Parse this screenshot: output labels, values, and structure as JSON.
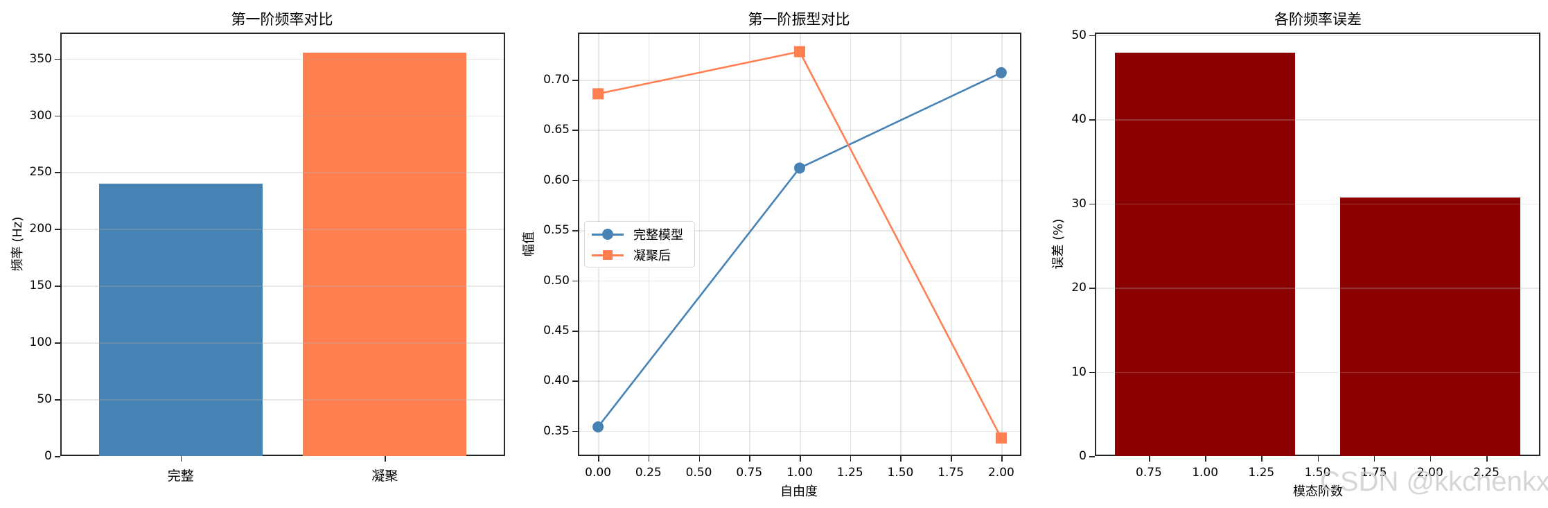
{
  "chart_data": [
    {
      "type": "bar",
      "title": "第一阶频率对比",
      "xlabel": "",
      "ylabel": "频率 (Hz)",
      "categories": [
        "完整",
        "凝聚"
      ],
      "values": [
        240,
        355
      ],
      "colors": [
        "#4682b4",
        "#ff7f50"
      ],
      "ylim": [
        0,
        373
      ],
      "yticks": [
        0,
        50,
        100,
        150,
        200,
        250,
        300,
        350
      ],
      "grid": "y"
    },
    {
      "type": "line",
      "title": "第一阶振型对比",
      "xlabel": "自由度",
      "ylabel": "幅值",
      "x": [
        0,
        1,
        2
      ],
      "series": [
        {
          "name": "完整模型",
          "values": [
            0.354,
            0.612,
            0.707
          ],
          "color": "#4682b4",
          "marker": "circle"
        },
        {
          "name": "凝聚后",
          "values": [
            0.686,
            0.728,
            0.343
          ],
          "color": "#ff7f50",
          "marker": "square"
        }
      ],
      "xlim": [
        -0.1,
        2.1
      ],
      "ylim": [
        0.325,
        0.747
      ],
      "xticks": [
        "0.00",
        "0.25",
        "0.50",
        "0.75",
        "1.00",
        "1.25",
        "1.50",
        "1.75",
        "2.00"
      ],
      "yticks": [
        "0.35",
        "0.40",
        "0.45",
        "0.50",
        "0.55",
        "0.60",
        "0.65",
        "0.70"
      ],
      "legend_position": "center left",
      "grid": "both"
    },
    {
      "type": "bar",
      "title": "各阶频率误差",
      "xlabel": "模态阶数",
      "ylabel": "误差 (%)",
      "x": [
        1,
        2
      ],
      "values": [
        47.9,
        30.7
      ],
      "color": "#8b0000",
      "xlim": [
        0.51,
        2.49
      ],
      "ylim": [
        0,
        50.3
      ],
      "xticks": [
        "0.75",
        "1.00",
        "1.25",
        "1.50",
        "1.75",
        "2.00",
        "2.25"
      ],
      "yticks": [
        "0",
        "10",
        "20",
        "30",
        "40",
        "50"
      ],
      "grid": "y"
    }
  ],
  "panels": {
    "freq": {
      "title": "第一阶频率对比",
      "ylabel": "频率 (Hz)",
      "yticks": [
        "0",
        "50",
        "100",
        "150",
        "200",
        "250",
        "300",
        "350"
      ],
      "categories": [
        "完整",
        "凝聚"
      ]
    },
    "mode": {
      "title": "第一阶振型对比",
      "xlabel": "自由度",
      "ylabel": "幅值",
      "xticks": [
        "0.00",
        "0.25",
        "0.50",
        "0.75",
        "1.00",
        "1.25",
        "1.50",
        "1.75",
        "2.00"
      ],
      "yticks": [
        "0.35",
        "0.40",
        "0.45",
        "0.50",
        "0.55",
        "0.60",
        "0.65",
        "0.70"
      ],
      "legend": [
        "完整模型",
        "凝聚后"
      ]
    },
    "error": {
      "title": "各阶频率误差",
      "xlabel": "模态阶数",
      "ylabel": "误差 (%)",
      "xticks": [
        "0.75",
        "1.00",
        "1.25",
        "1.50",
        "1.75",
        "2.00",
        "2.25"
      ],
      "yticks": [
        "0",
        "10",
        "20",
        "30",
        "40",
        "50"
      ]
    }
  },
  "watermark": "CSDN @kkchenkx"
}
